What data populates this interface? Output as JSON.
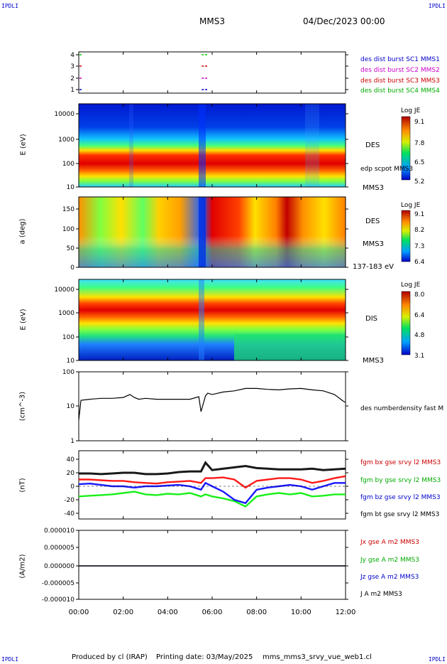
{
  "header": {
    "corner_left_top": "IPDLI",
    "corner_right_top": "IPDLI",
    "corner_left_bottom": "IPDLI",
    "corner_right_bottom": "IPDLI",
    "spacecraft": "MMS3",
    "datetime": "04/Dec/2023 00:00"
  },
  "footer": {
    "produced_by": "Produced by cl (IRAP)",
    "printing_date": "Printing date: 03/May/2025",
    "script": "mms_mms3_srvy_vue_web1.cl"
  },
  "time_axis": {
    "ticks": [
      "00:00",
      "02:00",
      "04:00",
      "06:00",
      "08:00",
      "10:00",
      "12:00"
    ],
    "range_hours": [
      0,
      12
    ]
  },
  "panels": {
    "p1": {
      "y_ticks": [
        "4",
        "3",
        "2",
        "1"
      ],
      "legend": [
        {
          "text": "des dist burst SC1 MMS1",
          "color": "#0000cc"
        },
        {
          "text": "des dist burst SC2 MMS2",
          "color": "#cc00cc"
        },
        {
          "text": "des dist burst SC3 MMS3",
          "color": "#cc0000"
        },
        {
          "text": "des dist burst SC4 MMS4",
          "color": "#00cc00"
        }
      ]
    },
    "p2": {
      "ylabel": "E (eV)",
      "y_ticks": [
        "10000",
        "1000",
        "100",
        "10"
      ],
      "label_main": "DES",
      "label_sub": "edp scpot MMS3",
      "label_sc": "MMS3",
      "colorbar": {
        "title": "Log JE",
        "ticks": [
          "9.1",
          "7.8",
          "6.5",
          "5.2"
        ]
      }
    },
    "p3": {
      "ylabel": "a (deg)",
      "y_ticks": [
        "150",
        "100",
        "50",
        "0"
      ],
      "label_main": "DES",
      "label_sc": "MMS3",
      "label_range": "137-183 eV",
      "colorbar": {
        "title": "Log JE",
        "ticks": [
          "9.1",
          "8.2",
          "7.3",
          "6.4"
        ]
      }
    },
    "p4": {
      "ylabel": "E (eV)",
      "y_ticks": [
        "10000",
        "1000",
        "100",
        "10"
      ],
      "label_main": "DIS",
      "label_sc": "MMS3",
      "colorbar": {
        "title": "Log JE",
        "ticks": [
          "8.0",
          "6.4",
          "4.8",
          "3.1"
        ]
      }
    },
    "p5": {
      "ylabel": "(cm^-3)",
      "y_ticks": [
        "100",
        "10",
        "1"
      ],
      "legend": [
        {
          "text": "des numberdensity fast M",
          "color": "#000000"
        }
      ]
    },
    "p6": {
      "ylabel": "(nT)",
      "y_ticks": [
        "40",
        "20",
        "0",
        "-20",
        "-40"
      ],
      "legend": [
        {
          "text": "fgm bx gse srvy l2 MMS3",
          "color": "#cc0000"
        },
        {
          "text": "fgm by gse srvy l2 MMS3",
          "color": "#00cc00"
        },
        {
          "text": "fgm bz gse srvy l2 MMS3",
          "color": "#0000cc"
        },
        {
          "text": "fgm bt gse srvy l2 MMS3",
          "color": "#000000"
        }
      ]
    },
    "p7": {
      "ylabel": "(A/m2)",
      "y_ticks": [
        "0.000010",
        "0.000005",
        "0.000000",
        "-0.000005",
        "-0.000010"
      ],
      "legend": [
        {
          "text": "Jx gse A m2 MMS3",
          "color": "#cc0000"
        },
        {
          "text": "Jy gse A m2 MMS3",
          "color": "#00cc00"
        },
        {
          "text": "Jz gse A m2 MMS3",
          "color": "#0000cc"
        },
        {
          "text": "J A m2 MMS3",
          "color": "#000000"
        }
      ]
    }
  },
  "chart_data": [
    {
      "type": "scatter",
      "panel": "burst availability",
      "y_ticks": [
        1,
        2,
        3,
        4
      ],
      "series": [
        {
          "name": "des dist burst SC1 MMS1",
          "y": 1,
          "x_hours": [
            0.0,
            5.5,
            5.65
          ]
        },
        {
          "name": "des dist burst SC2 MMS2",
          "y": 2,
          "x_hours": [
            0.0,
            5.5,
            5.65
          ]
        },
        {
          "name": "des dist burst SC3 MMS3",
          "y": 3,
          "x_hours": [
            0.0,
            5.5,
            5.65
          ]
        },
        {
          "name": "des dist burst SC4 MMS4",
          "y": 4,
          "x_hours": [
            0.0,
            5.5,
            5.65
          ]
        }
      ]
    },
    {
      "type": "heatmap",
      "panel": "DES energy spectrogram",
      "ylabel": "E (eV)",
      "yscale": "log",
      "ylim": [
        10,
        30000
      ],
      "colorbar": {
        "title": "Log JE",
        "range": [
          5.2,
          9.1
        ]
      },
      "peak_energy_eV": 70
    },
    {
      "type": "heatmap",
      "panel": "DES pitch angle",
      "ylabel": "a (deg)",
      "ylim": [
        0,
        180
      ],
      "colorbar": {
        "title": "Log JE",
        "range": [
          6.4,
          9.1
        ]
      }
    },
    {
      "type": "heatmap",
      "panel": "DIS energy spectrogram",
      "ylabel": "E (eV)",
      "yscale": "log",
      "ylim": [
        10,
        20000
      ],
      "colorbar": {
        "title": "Log JE",
        "range": [
          3.1,
          8.0
        ]
      },
      "peak_energy_eV": 1000
    },
    {
      "type": "line",
      "panel": "density",
      "ylabel": "(cm^-3)",
      "yscale": "log",
      "ylim": [
        1,
        100
      ],
      "series": [
        {
          "name": "des numberdensity fast M",
          "x_hours": [
            0,
            0.1,
            0.5,
            1.0,
            1.5,
            2.0,
            2.3,
            2.5,
            2.7,
            3.0,
            3.5,
            4.0,
            4.5,
            5.0,
            5.4,
            5.5,
            5.7,
            5.8,
            6.0,
            6.5,
            7.0,
            7.5,
            8.0,
            8.5,
            9.0,
            9.5,
            10.0,
            10.5,
            11.0,
            11.5,
            11.9,
            12.0
          ],
          "y": [
            4,
            15,
            16,
            17,
            17,
            18,
            22,
            18,
            16,
            17,
            16,
            16,
            16,
            16,
            19,
            7,
            20,
            24,
            22,
            26,
            28,
            33,
            33,
            31,
            30,
            32,
            33,
            30,
            28,
            22,
            14,
            13
          ]
        }
      ]
    },
    {
      "type": "line",
      "panel": "magnetic field",
      "ylabel": "(nT)",
      "ylim": [
        -50,
        50
      ],
      "x_hours": [
        0,
        0.5,
        1,
        1.5,
        2,
        2.5,
        3,
        3.5,
        4,
        4.5,
        5,
        5.5,
        5.7,
        6,
        6.5,
        7,
        7.5,
        8,
        8.5,
        9,
        9.5,
        10,
        10.5,
        11,
        11.5,
        12
      ],
      "series": [
        {
          "name": "fgm bx gse srvy l2 MMS3",
          "values": [
            10,
            10,
            9,
            8,
            8,
            6,
            5,
            4,
            6,
            7,
            8,
            5,
            12,
            12,
            13,
            10,
            -2,
            8,
            10,
            12,
            12,
            10,
            5,
            8,
            12,
            15
          ]
        },
        {
          "name": "fgm by gse srvy l2 MMS3",
          "values": [
            -15,
            -14,
            -13,
            -12,
            -10,
            -8,
            -12,
            -13,
            -11,
            -12,
            -10,
            -15,
            -12,
            -15,
            -18,
            -22,
            -30,
            -15,
            -12,
            -10,
            -12,
            -10,
            -15,
            -14,
            -12,
            -12
          ]
        },
        {
          "name": "fgm bz gse srvy l2 MMS3",
          "values": [
            3,
            4,
            2,
            0,
            0,
            -2,
            0,
            0,
            1,
            2,
            0,
            -5,
            5,
            0,
            -8,
            -20,
            -25,
            -5,
            -2,
            0,
            2,
            0,
            -5,
            0,
            5,
            5
          ]
        },
        {
          "name": "fgm bt gse srvy l2 MMS3",
          "values": [
            19,
            19,
            18,
            19,
            20,
            20,
            18,
            18,
            19,
            21,
            22,
            22,
            35,
            24,
            26,
            28,
            30,
            27,
            26,
            25,
            25,
            25,
            26,
            24,
            25,
            26
          ]
        }
      ]
    },
    {
      "type": "line",
      "panel": "current density",
      "ylabel": "(A/m2)",
      "ylim": [
        -1e-05,
        1e-05
      ],
      "x_hours": [
        0,
        12
      ],
      "series": [
        {
          "name": "Jx gse A m2 MMS3",
          "values": [
            0.0,
            0.0
          ]
        },
        {
          "name": "Jy gse A m2 MMS3",
          "values": [
            0.0,
            0.0
          ]
        },
        {
          "name": "Jz gse A m2 MMS3",
          "values": [
            0.0,
            0.0
          ]
        },
        {
          "name": "J A m2 MMS3",
          "values": [
            0.0,
            0.0
          ]
        }
      ]
    }
  ]
}
